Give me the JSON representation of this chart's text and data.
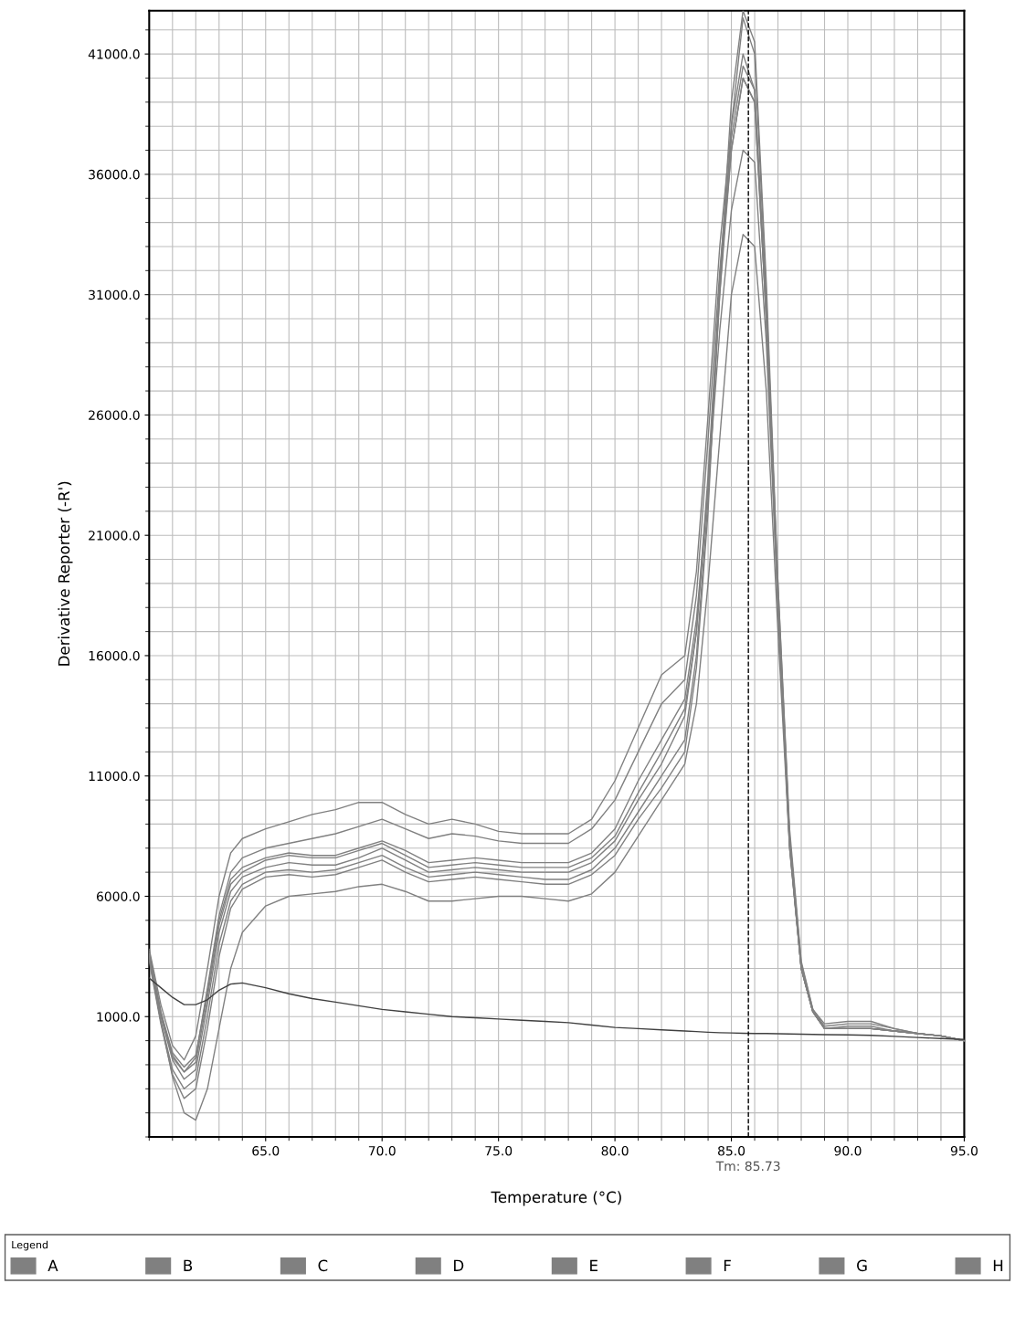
{
  "chart_data": {
    "type": "line",
    "xlabel": "Temperature (°C)",
    "ylabel": "Derivative Reporter (-R')",
    "x": [
      60,
      60.5,
      61,
      61.5,
      62,
      62.5,
      63,
      63.5,
      64,
      65,
      66,
      67,
      68,
      69,
      70,
      71,
      72,
      73,
      74,
      75,
      76,
      77,
      78,
      79,
      80,
      81,
      82,
      83,
      83.5,
      84,
      84.5,
      85,
      85.5,
      86,
      86.5,
      87,
      87.5,
      88,
      88.5,
      89,
      90,
      91,
      92,
      93,
      94,
      95
    ],
    "xlim": [
      60,
      95
    ],
    "xticks": [
      {
        "value": 65,
        "label": "65.0"
      },
      {
        "value": 70,
        "label": "70.0"
      },
      {
        "value": 75,
        "label": "75.0"
      },
      {
        "value": 80,
        "label": "80.0"
      },
      {
        "value": 85,
        "label": "85.0"
      },
      {
        "value": 90,
        "label": "90.0"
      },
      {
        "value": 95,
        "label": "95.0"
      }
    ],
    "ylim": [
      -4000,
      42800
    ],
    "yticks": [
      {
        "value": 1000,
        "label": "1000.0"
      },
      {
        "value": 6000,
        "label": "6000.0"
      },
      {
        "value": 11000,
        "label": "11000.0"
      },
      {
        "value": 16000,
        "label": "16000.0"
      },
      {
        "value": 21000,
        "label": "21000.0"
      },
      {
        "value": 26000,
        "label": "26000.0"
      },
      {
        "value": 31000,
        "label": "31000.0"
      },
      {
        "value": 36000,
        "label": "36000.0"
      },
      {
        "value": 41000,
        "label": "41000.0"
      }
    ],
    "grid": true,
    "legend": "bottom",
    "legend_title": "Legend",
    "line_style": "solid",
    "marker": "none",
    "series": [
      {
        "name": "A",
        "color": "#808080",
        "values": [
          3800,
          1500,
          -200,
          -800,
          200,
          3000,
          6000,
          7800,
          8400,
          8800,
          9100,
          9400,
          9600,
          9900,
          9900,
          9400,
          9000,
          9200,
          9000,
          8700,
          8600,
          8600,
          8600,
          9200,
          10800,
          13000,
          15200,
          16000,
          19500,
          26000,
          33000,
          38000,
          41000,
          39500,
          30000,
          18500,
          8500,
          3200,
          1300,
          700,
          800,
          800,
          500,
          300,
          200,
          0
        ]
      },
      {
        "name": "B",
        "color": "#808080",
        "values": [
          3600,
          1200,
          -700,
          -1300,
          -700,
          2200,
          5200,
          7000,
          7600,
          8000,
          8200,
          8400,
          8600,
          8900,
          9200,
          8800,
          8400,
          8600,
          8500,
          8300,
          8200,
          8200,
          8200,
          8800,
          10000,
          12000,
          14000,
          15000,
          18500,
          25000,
          32000,
          37500,
          40500,
          39500,
          30500,
          19000,
          8800,
          3300,
          1300,
          600,
          700,
          700,
          500,
          300,
          200,
          0
        ]
      },
      {
        "name": "C",
        "color": "#808080",
        "values": [
          3500,
          1000,
          -800,
          -1600,
          -1200,
          1500,
          4500,
          6200,
          6800,
          7200,
          7400,
          7300,
          7300,
          7600,
          8000,
          7500,
          7000,
          7100,
          7200,
          7100,
          7000,
          7000,
          7000,
          7400,
          8300,
          10000,
          11500,
          13500,
          17000,
          23000,
          31000,
          37000,
          40000,
          39000,
          30000,
          18000,
          8000,
          3000,
          1200,
          500,
          500,
          500,
          400,
          300,
          200,
          0
        ]
      },
      {
        "name": "D",
        "color": "#808080",
        "values": [
          3400,
          800,
          -1200,
          -2000,
          -1600,
          1000,
          4000,
          5800,
          6500,
          7000,
          7100,
          7000,
          7100,
          7400,
          7700,
          7200,
          6800,
          6900,
          7000,
          6900,
          6800,
          6700,
          6700,
          7100,
          8000,
          9500,
          11000,
          12500,
          16000,
          22500,
          31000,
          38000,
          42500,
          41000,
          31000,
          18500,
          8200,
          3000,
          1200,
          500,
          500,
          500,
          400,
          300,
          200,
          0
        ]
      },
      {
        "name": "E",
        "color": "#808080",
        "values": [
          3700,
          1200,
          -500,
          -1100,
          -600,
          2000,
          5000,
          6700,
          7200,
          7600,
          7800,
          7700,
          7700,
          8000,
          8300,
          7900,
          7400,
          7500,
          7600,
          7500,
          7400,
          7400,
          7400,
          7800,
          8800,
          10800,
          12500,
          14200,
          17500,
          23000,
          29500,
          34500,
          37000,
          36500,
          29000,
          18000,
          8200,
          3000,
          1200,
          500,
          600,
          600,
          400,
          300,
          200,
          0
        ]
      },
      {
        "name": "F",
        "color": "#808080",
        "values": [
          3500,
          800,
          -1500,
          -3000,
          -3300,
          -2000,
          500,
          3000,
          4500,
          5600,
          6000,
          6100,
          6200,
          6400,
          6500,
          6200,
          5800,
          5800,
          5900,
          6000,
          6000,
          5900,
          5800,
          6100,
          7000,
          8500,
          10000,
          11500,
          14000,
          19000,
          25000,
          31000,
          33500,
          33000,
          27000,
          17000,
          8000,
          3000,
          1200,
          500,
          500,
          500,
          400,
          300,
          200,
          0
        ]
      },
      {
        "name": "G",
        "color": "#808080",
        "values": [
          3300,
          700,
          -1400,
          -2400,
          -2000,
          500,
          3500,
          5500,
          6300,
          6800,
          6900,
          6800,
          6900,
          7200,
          7500,
          7000,
          6600,
          6700,
          6800,
          6700,
          6600,
          6500,
          6500,
          6900,
          7700,
          9200,
          10500,
          12000,
          15500,
          22000,
          31500,
          39000,
          42800,
          41500,
          31500,
          19000,
          8500,
          3100,
          1200,
          500,
          500,
          500,
          400,
          300,
          200,
          0
        ]
      },
      {
        "name": "H",
        "color": "#808080",
        "values": [
          3600,
          1100,
          -600,
          -1300,
          -900,
          1800,
          4800,
          6500,
          7000,
          7500,
          7700,
          7600,
          7600,
          7900,
          8200,
          7700,
          7200,
          7300,
          7400,
          7300,
          7200,
          7200,
          7200,
          7600,
          8500,
          10300,
          12000,
          13800,
          17000,
          23500,
          31500,
          37000,
          40000,
          39000,
          30000,
          18200,
          8100,
          3000,
          1200,
          500,
          500,
          500,
          400,
          300,
          200,
          0
        ]
      },
      {
        "color": "#404040",
        "values": [
          2600,
          2200,
          1800,
          1500,
          1500,
          1700,
          2100,
          2350,
          2400,
          2200,
          1950,
          1750,
          1600,
          1450,
          1300,
          1200,
          1100,
          1000,
          950,
          900,
          850,
          800,
          750,
          650,
          550,
          500,
          450,
          400,
          380,
          350,
          330,
          320,
          310,
          300,
          300,
          290,
          280,
          270,
          260,
          250,
          240,
          220,
          180,
          130,
          90,
          50
        ]
      }
    ],
    "ref_lines": [
      {
        "axis": "x",
        "value": 85.73,
        "label": "Tm: 85.73",
        "color": "#000000",
        "line_style": "dashed"
      }
    ]
  }
}
